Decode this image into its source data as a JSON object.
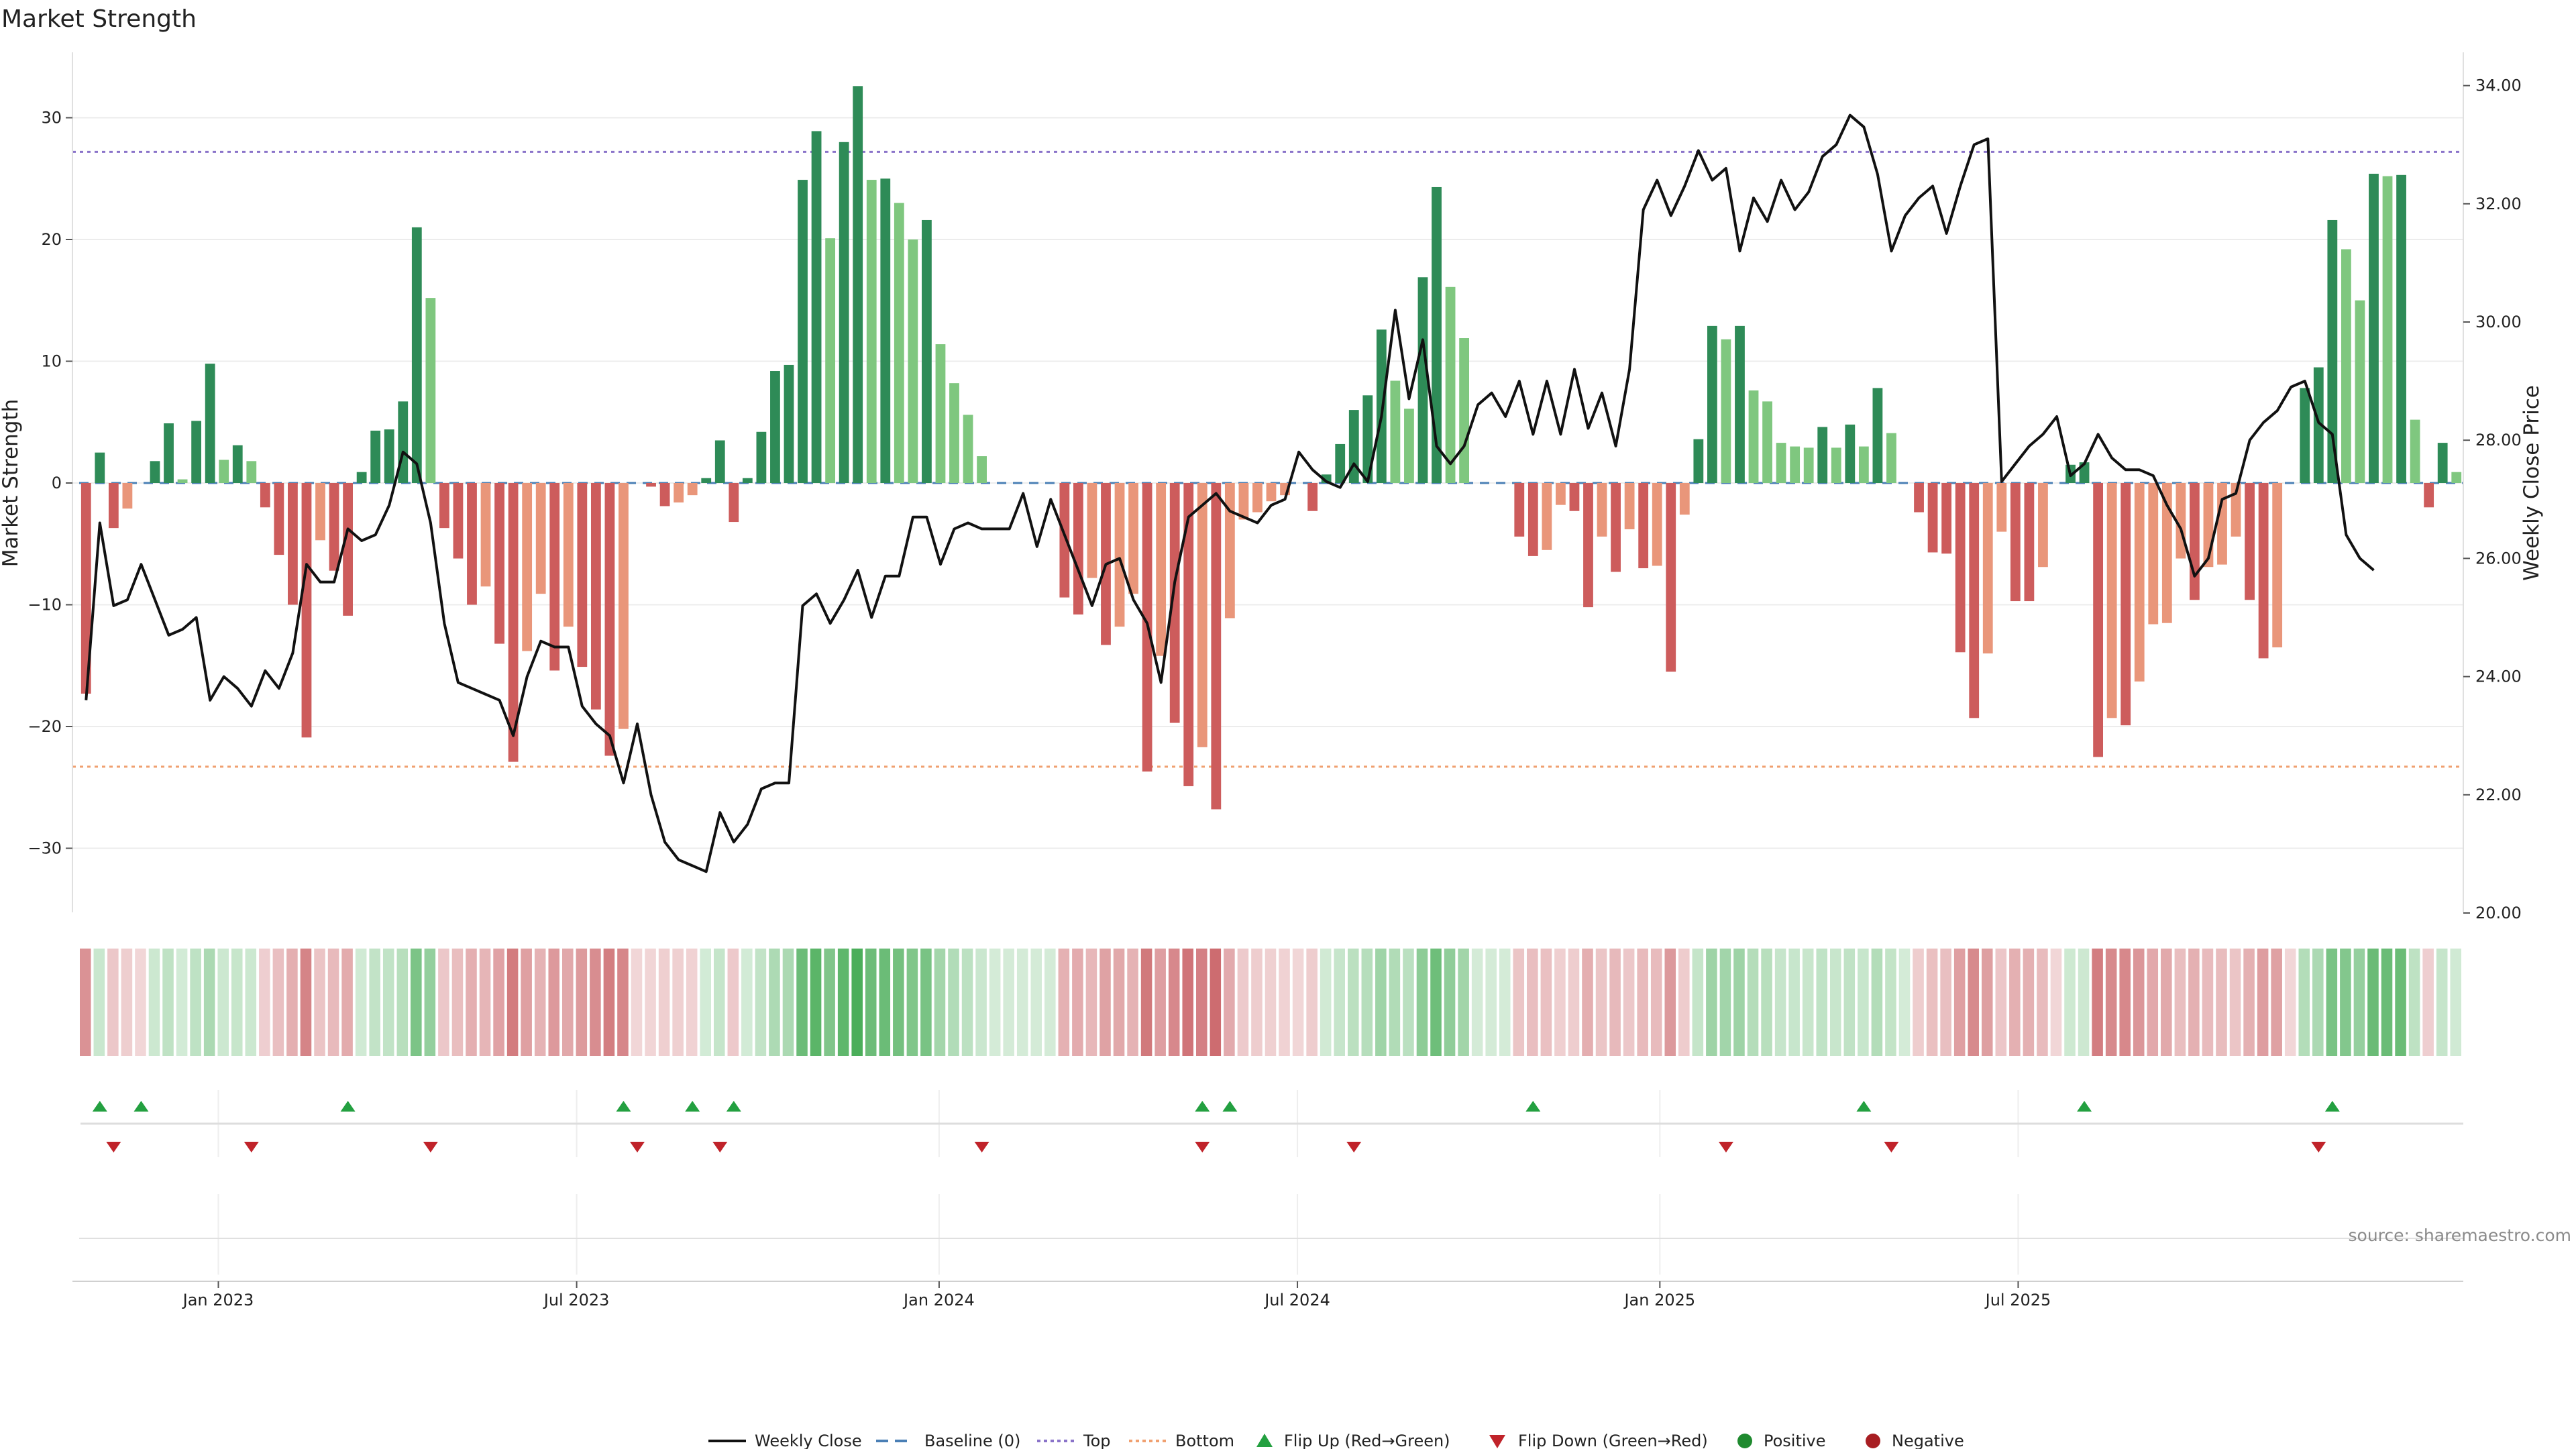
{
  "chart_data": {
    "type": "bar",
    "title": "Market Strength",
    "ylabel": "Market Strength",
    "y2label": "Weekly Close Price",
    "ylim": [
      -35,
      35
    ],
    "y2lim": [
      20.0,
      34.5
    ],
    "yticks": [
      30,
      20,
      10,
      0,
      -10,
      -20,
      -30
    ],
    "ytick_labels": [
      "30",
      "20",
      "10",
      "0",
      "−10",
      "−20",
      "−30"
    ],
    "y2ticks": [
      34,
      32,
      30,
      28,
      26,
      24,
      22,
      20
    ],
    "y2tick_labels": [
      "34.00",
      "32.00",
      "30.00",
      "28.00",
      "26.00",
      "24.00",
      "22.00",
      "20.00"
    ],
    "x_tick_labels": [
      "Jan 2023",
      "Jul 2023",
      "Jan 2024",
      "Jul 2024",
      "Jan 2025",
      "Jul 2025"
    ],
    "x_tick_weeks": [
      9.6,
      35.6,
      61.9,
      87.9,
      114.2,
      140.2
    ],
    "top_line": 27.2,
    "bottom_line": -23.3,
    "strength": [
      -17.3,
      2.5,
      -3.7,
      -2.1,
      0,
      1.8,
      4.9,
      0.3,
      5.1,
      9.8,
      1.9,
      3.1,
      1.8,
      -2.0,
      -5.9,
      -10.0,
      -20.9,
      -4.7,
      -7.2,
      -10.9,
      0.9,
      4.3,
      4.4,
      6.7,
      21.0,
      15.2,
      -3.7,
      -6.2,
      -10.0,
      -8.5,
      -13.2,
      -22.9,
      -13.8,
      -9.1,
      -15.4,
      -11.8,
      -15.1,
      -18.6,
      -22.4,
      -20.2,
      0,
      -0.3,
      -1.9,
      -1.6,
      -1.0,
      0.4,
      3.5,
      -3.2,
      0.4,
      4.2,
      9.2,
      9.7,
      24.9,
      28.9,
      20.1,
      28.0,
      32.6,
      24.9,
      25.0,
      23.0,
      20.0,
      21.6,
      11.4,
      8.2,
      5.6,
      2.2,
      0,
      0,
      0,
      0,
      0,
      -9.4,
      -10.8,
      -7.8,
      -13.3,
      -11.8,
      -9.1,
      -23.7,
      -14.2,
      -19.7,
      -24.9,
      -21.7,
      -26.8,
      -11.1,
      -3.0,
      -2.4,
      -1.5,
      -1.0,
      0,
      -2.3,
      0.7,
      3.2,
      6.0,
      7.2,
      12.6,
      8.4,
      6.1,
      16.9,
      24.3,
      16.1,
      11.9,
      0,
      0,
      0,
      -4.4,
      -6.0,
      -5.5,
      -1.8,
      -2.3,
      -10.2,
      -4.4,
      -7.3,
      -3.8,
      -7.0,
      -6.8,
      -15.5,
      -2.6,
      3.6,
      12.9,
      11.8,
      12.9,
      7.6,
      6.7,
      3.3,
      3.0,
      2.9,
      4.6,
      2.9,
      4.8,
      3.0,
      7.8,
      4.1,
      0,
      -2.4,
      -5.7,
      -5.8,
      -13.9,
      -19.3,
      -14.0,
      -4.0,
      -9.7,
      -9.7,
      -6.9,
      0,
      1.5,
      1.7,
      -22.5,
      -19.3,
      -19.9,
      -16.3,
      -11.6,
      -11.5,
      -6.2,
      -9.6,
      -6.9,
      -6.7,
      -4.4,
      -9.6,
      -14.4,
      -13.5,
      0,
      7.8,
      9.5,
      21.6,
      19.2,
      15.0,
      25.4,
      25.2,
      25.3,
      5.2,
      -2.0,
      3.3,
      0.9
    ],
    "weekly_close": [
      23.6,
      26.6,
      25.2,
      25.3,
      25.9,
      25.3,
      24.7,
      24.8,
      25.0,
      23.6,
      24.0,
      23.8,
      23.5,
      24.1,
      23.8,
      24.4,
      25.9,
      25.6,
      25.6,
      26.5,
      26.3,
      26.4,
      26.9,
      27.8,
      27.6,
      26.6,
      24.9,
      23.9,
      23.8,
      23.7,
      23.6,
      23.0,
      24.0,
      24.6,
      24.5,
      24.5,
      23.5,
      23.2,
      23.0,
      22.2,
      23.2,
      22.0,
      21.2,
      20.9,
      20.8,
      20.7,
      21.7,
      21.2,
      21.5,
      22.1,
      22.2,
      22.2,
      25.2,
      25.4,
      24.9,
      25.3,
      25.8,
      25.0,
      25.7,
      25.7,
      26.7,
      26.7,
      25.9,
      26.5,
      26.6,
      26.5,
      26.5,
      26.5,
      27.1,
      26.2,
      27.0,
      26.4,
      25.8,
      25.2,
      25.9,
      26.0,
      25.3,
      24.9,
      23.9,
      25.6,
      26.7,
      26.9,
      27.1,
      26.8,
      26.7,
      26.6,
      26.9,
      27.0,
      27.8,
      27.5,
      27.3,
      27.2,
      27.6,
      27.3,
      28.4,
      30.2,
      28.7,
      29.7,
      27.9,
      27.6,
      27.9,
      28.6,
      28.8,
      28.4,
      29.0,
      28.1,
      29.0,
      28.1,
      29.2,
      28.2,
      28.8,
      27.9,
      29.2,
      31.9,
      32.4,
      31.8,
      32.3,
      32.9,
      32.4,
      32.6,
      31.2,
      32.1,
      31.7,
      32.4,
      31.9,
      32.2,
      32.8,
      33.0,
      33.5,
      33.3,
      32.5,
      31.2,
      31.8,
      32.1,
      32.3,
      31.5,
      32.3,
      33.0,
      33.1,
      27.3,
      27.6,
      27.9,
      28.1,
      28.4,
      27.4,
      27.6,
      28.1,
      27.7,
      27.5,
      27.5,
      27.4,
      26.9,
      26.5,
      25.7,
      26.0,
      27.0,
      27.1,
      28.0,
      28.3,
      28.5,
      28.9,
      29.0,
      28.3,
      28.1,
      26.4,
      26.0,
      25.8
    ],
    "flip_up_weeks": [
      1,
      4,
      19,
      39,
      44,
      47,
      81,
      83,
      105,
      129,
      145,
      163
    ],
    "flip_down_weeks": [
      2,
      12,
      25,
      40,
      46,
      65,
      81,
      92,
      119,
      131,
      162
    ],
    "series": [
      {
        "name": "Weekly Close",
        "style": "line",
        "color": "#111111"
      },
      {
        "name": "Baseline (0)",
        "style": "dashed",
        "color": "#4a7fb5"
      },
      {
        "name": "Top",
        "style": "dotted",
        "color": "#8a73c9"
      },
      {
        "name": "Bottom",
        "style": "dotted",
        "color": "#f0a070"
      },
      {
        "name": "Flip Up (Red→Green)",
        "style": "triangle-up",
        "color": "#23a040"
      },
      {
        "name": "Flip Down (Green→Red)",
        "style": "triangle-down",
        "color": "#c0232a"
      },
      {
        "name": "Positive",
        "style": "circle",
        "color": "#1f8a2f"
      },
      {
        "name": "Negative",
        "style": "circle",
        "color": "#a81e22"
      }
    ],
    "legend_position": "bottom-center",
    "grid": true
  },
  "labels": {
    "source": "source: sharemaestro.com"
  },
  "colors": {
    "pos_strong": "#2e8b57",
    "pos_light": "#7fc77f",
    "neg_strong": "#cd5c5c",
    "neg_light": "#e9967a",
    "line": "#111111",
    "top": "#8a73c9",
    "bottom": "#f0a070",
    "baseline": "#4a7fb5"
  }
}
